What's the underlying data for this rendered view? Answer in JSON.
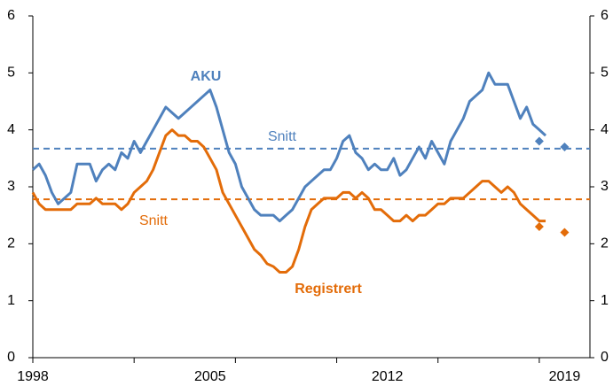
{
  "chart_data": {
    "type": "line",
    "x": [
      1998,
      1998.25,
      1998.5,
      1998.75,
      1999,
      1999.25,
      1999.5,
      1999.75,
      2000,
      2000.25,
      2000.5,
      2000.75,
      2001,
      2001.25,
      2001.5,
      2001.75,
      2002,
      2002.25,
      2002.5,
      2002.75,
      2003,
      2003.25,
      2003.5,
      2003.75,
      2004,
      2004.25,
      2004.5,
      2004.75,
      2005,
      2005.25,
      2005.5,
      2005.75,
      2006,
      2006.25,
      2006.5,
      2006.75,
      2007,
      2007.25,
      2007.5,
      2007.75,
      2008,
      2008.25,
      2008.5,
      2008.75,
      2009,
      2009.25,
      2009.5,
      2009.75,
      2010,
      2010.25,
      2010.5,
      2010.75,
      2011,
      2011.25,
      2011.5,
      2011.75,
      2012,
      2012.25,
      2012.5,
      2012.75,
      2013,
      2013.25,
      2013.5,
      2013.75,
      2014,
      2014.25,
      2014.5,
      2014.75,
      2015,
      2015.25,
      2015.5,
      2015.75,
      2016,
      2016.25,
      2016.5,
      2016.75,
      2017,
      2017.25,
      2017.5,
      2017.75,
      2018,
      2018.25
    ],
    "series": [
      {
        "name": "AKU",
        "color": "#4f81bd",
        "values": [
          3.3,
          3.4,
          3.2,
          2.9,
          2.7,
          2.8,
          2.9,
          3.4,
          3.4,
          3.4,
          3.1,
          3.3,
          3.4,
          3.3,
          3.6,
          3.5,
          3.8,
          3.6,
          3.8,
          4.0,
          4.2,
          4.4,
          4.3,
          4.2,
          4.3,
          4.4,
          4.5,
          4.6,
          4.7,
          4.4,
          4.0,
          3.6,
          3.4,
          3.0,
          2.8,
          2.6,
          2.5,
          2.5,
          2.5,
          2.4,
          2.5,
          2.6,
          2.8,
          3.0,
          3.1,
          3.2,
          3.3,
          3.3,
          3.5,
          3.8,
          3.9,
          3.6,
          3.5,
          3.3,
          3.4,
          3.3,
          3.3,
          3.5,
          3.2,
          3.3,
          3.5,
          3.7,
          3.5,
          3.8,
          3.6,
          3.4,
          3.8,
          4.0,
          4.2,
          4.5,
          4.6,
          4.7,
          5.0,
          4.8,
          4.8,
          4.8,
          4.5,
          4.2,
          4.4,
          4.1,
          4.0,
          3.9
        ]
      },
      {
        "name": "Registrert",
        "color": "#e36c09",
        "values": [
          2.9,
          2.7,
          2.6,
          2.6,
          2.6,
          2.6,
          2.6,
          2.7,
          2.7,
          2.7,
          2.8,
          2.7,
          2.7,
          2.7,
          2.6,
          2.7,
          2.9,
          3.0,
          3.1,
          3.3,
          3.6,
          3.9,
          4.0,
          3.9,
          3.9,
          3.8,
          3.8,
          3.7,
          3.5,
          3.3,
          2.9,
          2.7,
          2.5,
          2.3,
          2.1,
          1.9,
          1.8,
          1.65,
          1.6,
          1.5,
          1.5,
          1.6,
          1.9,
          2.3,
          2.6,
          2.7,
          2.8,
          2.8,
          2.8,
          2.9,
          2.9,
          2.8,
          2.9,
          2.8,
          2.6,
          2.6,
          2.5,
          2.4,
          2.4,
          2.5,
          2.4,
          2.5,
          2.5,
          2.6,
          2.7,
          2.7,
          2.8,
          2.8,
          2.8,
          2.9,
          3.0,
          3.1,
          3.1,
          3.0,
          2.9,
          3.0,
          2.9,
          2.7,
          2.6,
          2.5,
          2.4,
          2.4
        ]
      }
    ],
    "forecast": [
      {
        "color": "#4f81bd",
        "x": [
          2018,
          2019
        ],
        "values": [
          3.8,
          3.7
        ]
      },
      {
        "color": "#e36c09",
        "x": [
          2018,
          2019
        ],
        "values": [
          2.3,
          2.2
        ]
      }
    ],
    "averages": [
      {
        "label": "Snitt",
        "value": 3.67,
        "color": "#4f81bd"
      },
      {
        "label": "Snitt",
        "value": 2.78,
        "color": "#e36c09"
      }
    ],
    "xlim": [
      1998,
      2020
    ],
    "xticks": [
      1998,
      2005,
      2012,
      2019
    ],
    "xtick_marks": [
      1998,
      2002,
      2006,
      2010,
      2014,
      2018
    ],
    "ylim": [
      0,
      6
    ],
    "yticks": [
      0,
      1,
      2,
      3,
      4,
      5,
      6
    ],
    "y2lim": [
      0,
      6
    ],
    "y2ticks": [
      0,
      1,
      2,
      3,
      4,
      5,
      6
    ]
  }
}
